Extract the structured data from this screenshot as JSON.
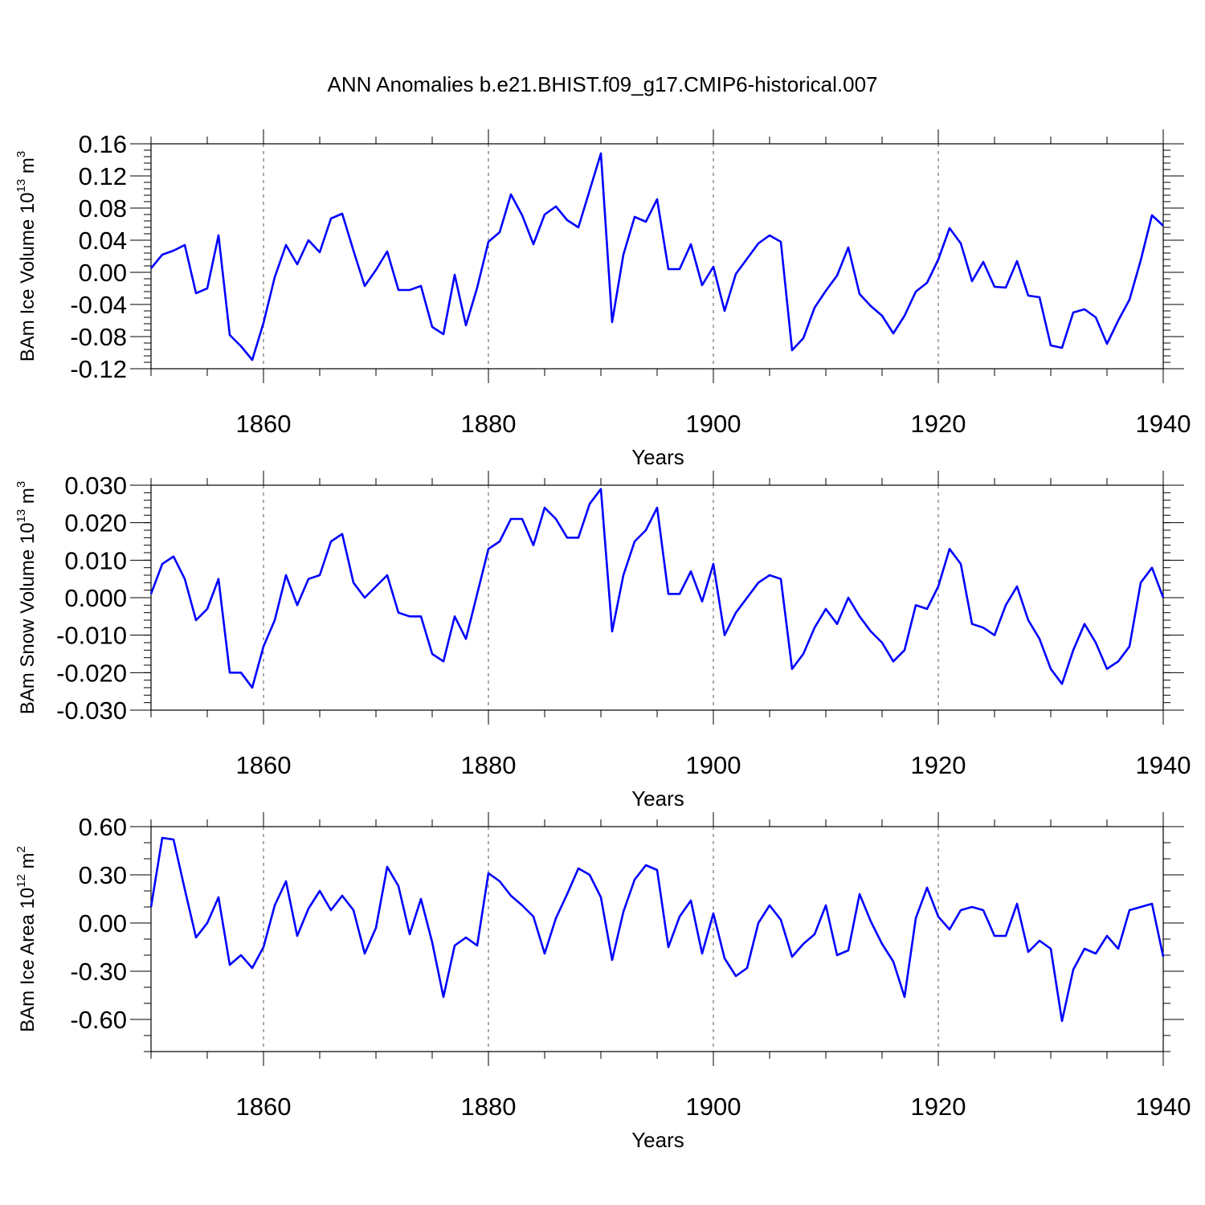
{
  "title": "ANN Anomalies b.e21.BHIST.f09_g17.CMIP6-historical.007",
  "chart_data": [
    {
      "type": "line",
      "ylabel": "BAm Ice Volume 10",
      "yunit_exp": "13",
      "yunit_tail": " m",
      "yunit_pow": "3",
      "xlabel": "Years",
      "xlim": [
        1850,
        1940
      ],
      "ylim": [
        -0.12,
        0.16
      ],
      "yticks": [
        -0.12,
        -0.08,
        -0.04,
        0.0,
        0.04,
        0.08,
        0.12,
        0.16
      ],
      "ytick_labels": [
        "-0.12",
        "-0.08",
        "-0.04",
        "0.00",
        "0.04",
        "0.08",
        "0.12",
        "0.16"
      ],
      "ytick_minor_step": 0.008,
      "xticks": [
        1860,
        1880,
        1900,
        1920,
        1940
      ],
      "xtick_labels": [
        "1860",
        "1880",
        "1900",
        "1920",
        "1940"
      ],
      "color": "#0000ff",
      "grid": "vertical dashed at major x ticks",
      "x": [
        1850,
        1851,
        1852,
        1853,
        1854,
        1855,
        1856,
        1857,
        1858,
        1859,
        1860,
        1861,
        1862,
        1863,
        1864,
        1865,
        1866,
        1867,
        1868,
        1869,
        1870,
        1871,
        1872,
        1873,
        1874,
        1875,
        1876,
        1877,
        1878,
        1879,
        1880,
        1881,
        1882,
        1883,
        1884,
        1885,
        1886,
        1887,
        1888,
        1889,
        1890,
        1891,
        1892,
        1893,
        1894,
        1895,
        1896,
        1897,
        1898,
        1899,
        1900,
        1901,
        1902,
        1903,
        1904,
        1905,
        1906,
        1907,
        1908,
        1909,
        1910,
        1911,
        1912,
        1913,
        1914,
        1915,
        1916,
        1917,
        1918,
        1919,
        1920,
        1921,
        1922,
        1923,
        1924,
        1925,
        1926,
        1927,
        1928,
        1929,
        1930,
        1931,
        1932,
        1933,
        1934,
        1935,
        1936,
        1937,
        1938,
        1939,
        1940
      ],
      "values": [
        0.005,
        0.022,
        0.027,
        0.034,
        -0.026,
        -0.02,
        0.046,
        -0.078,
        -0.092,
        -0.109,
        -0.063,
        -0.006,
        0.034,
        0.01,
        0.04,
        0.025,
        0.067,
        0.073,
        0.027,
        -0.017,
        0.003,
        0.026,
        -0.022,
        -0.022,
        -0.017,
        -0.068,
        -0.077,
        -0.003,
        -0.066,
        -0.019,
        0.038,
        0.05,
        0.097,
        0.071,
        0.035,
        0.072,
        0.082,
        0.065,
        0.056,
        0.102,
        0.148,
        -0.062,
        0.022,
        0.069,
        0.063,
        0.091,
        0.004,
        0.004,
        0.035,
        -0.016,
        0.007,
        -0.048,
        -0.002,
        0.017,
        0.036,
        0.046,
        0.038,
        -0.097,
        -0.082,
        -0.044,
        -0.023,
        -0.004,
        0.031,
        -0.027,
        -0.042,
        -0.054,
        -0.076,
        -0.054,
        -0.024,
        -0.013,
        0.016,
        0.055,
        0.036,
        -0.011,
        0.013,
        -0.018,
        -0.019,
        0.014,
        -0.029,
        -0.031,
        -0.091,
        -0.094,
        -0.05,
        -0.046,
        -0.056,
        -0.089,
        -0.06,
        -0.034,
        0.015,
        0.071,
        0.058
      ]
    },
    {
      "type": "line",
      "ylabel": "BAm Snow Volume 10",
      "yunit_exp": "13",
      "yunit_tail": " m",
      "yunit_pow": "3",
      "xlabel": "Years",
      "xlim": [
        1850,
        1940
      ],
      "ylim": [
        -0.03,
        0.03
      ],
      "yticks": [
        -0.03,
        -0.02,
        -0.01,
        0.0,
        0.01,
        0.02,
        0.03
      ],
      "ytick_labels": [
        "-0.030",
        "-0.020",
        "-0.010",
        "0.000",
        "0.010",
        "0.020",
        "0.030"
      ],
      "ytick_minor_step": 0.002,
      "xticks": [
        1860,
        1880,
        1900,
        1920,
        1940
      ],
      "xtick_labels": [
        "1860",
        "1880",
        "1900",
        "1920",
        "1940"
      ],
      "color": "#0000ff",
      "grid": "vertical dashed at major x ticks",
      "x": [
        1850,
        1851,
        1852,
        1853,
        1854,
        1855,
        1856,
        1857,
        1858,
        1859,
        1860,
        1861,
        1862,
        1863,
        1864,
        1865,
        1866,
        1867,
        1868,
        1869,
        1870,
        1871,
        1872,
        1873,
        1874,
        1875,
        1876,
        1877,
        1878,
        1879,
        1880,
        1881,
        1882,
        1883,
        1884,
        1885,
        1886,
        1887,
        1888,
        1889,
        1890,
        1891,
        1892,
        1893,
        1894,
        1895,
        1896,
        1897,
        1898,
        1899,
        1900,
        1901,
        1902,
        1903,
        1904,
        1905,
        1906,
        1907,
        1908,
        1909,
        1910,
        1911,
        1912,
        1913,
        1914,
        1915,
        1916,
        1917,
        1918,
        1919,
        1920,
        1921,
        1922,
        1923,
        1924,
        1925,
        1926,
        1927,
        1928,
        1929,
        1930,
        1931,
        1932,
        1933,
        1934,
        1935,
        1936,
        1937,
        1938,
        1939,
        1940
      ],
      "values": [
        0.001,
        0.009,
        0.011,
        0.005,
        -0.006,
        -0.003,
        0.005,
        -0.02,
        -0.02,
        -0.024,
        -0.013,
        -0.006,
        0.006,
        -0.002,
        0.005,
        0.006,
        0.015,
        0.017,
        0.004,
        0.0,
        0.003,
        0.006,
        -0.004,
        -0.005,
        -0.005,
        -0.015,
        -0.017,
        -0.005,
        -0.011,
        0.001,
        0.013,
        0.015,
        0.021,
        0.021,
        0.014,
        0.024,
        0.021,
        0.016,
        0.016,
        0.025,
        0.029,
        -0.009,
        0.006,
        0.015,
        0.018,
        0.024,
        0.001,
        0.001,
        0.007,
        -0.001,
        0.009,
        -0.01,
        -0.004,
        0.0,
        0.004,
        0.006,
        0.005,
        -0.019,
        -0.015,
        -0.008,
        -0.003,
        -0.007,
        0.0,
        -0.005,
        -0.009,
        -0.012,
        -0.017,
        -0.014,
        -0.002,
        -0.003,
        0.003,
        0.013,
        0.009,
        -0.007,
        -0.008,
        -0.01,
        -0.002,
        0.003,
        -0.006,
        -0.011,
        -0.019,
        -0.023,
        -0.014,
        -0.007,
        -0.012,
        -0.019,
        -0.017,
        -0.013,
        0.004,
        0.008,
        0.0
      ]
    },
    {
      "type": "line",
      "ylabel": "BAm Ice Area 10",
      "yunit_exp": "12",
      "yunit_tail": " m",
      "yunit_pow": "2",
      "xlabel": "Years",
      "xlim": [
        1850,
        1940
      ],
      "ylim": [
        -0.8,
        0.6
      ],
      "yticks": [
        -0.6,
        -0.3,
        0.0,
        0.3,
        0.6
      ],
      "ytick_labels": [
        "-0.60",
        "-0.30",
        "0.00",
        "0.30",
        "0.60"
      ],
      "ytick_minor_step": 0.1,
      "xticks": [
        1860,
        1880,
        1900,
        1920,
        1940
      ],
      "xtick_labels": [
        "1860",
        "1880",
        "1900",
        "1920",
        "1940"
      ],
      "color": "#0000ff",
      "grid": "vertical dashed at major x ticks",
      "x": [
        1850,
        1851,
        1852,
        1853,
        1854,
        1855,
        1856,
        1857,
        1858,
        1859,
        1860,
        1861,
        1862,
        1863,
        1864,
        1865,
        1866,
        1867,
        1868,
        1869,
        1870,
        1871,
        1872,
        1873,
        1874,
        1875,
        1876,
        1877,
        1878,
        1879,
        1880,
        1881,
        1882,
        1883,
        1884,
        1885,
        1886,
        1887,
        1888,
        1889,
        1890,
        1891,
        1892,
        1893,
        1894,
        1895,
        1896,
        1897,
        1898,
        1899,
        1900,
        1901,
        1902,
        1903,
        1904,
        1905,
        1906,
        1907,
        1908,
        1909,
        1910,
        1911,
        1912,
        1913,
        1914,
        1915,
        1916,
        1917,
        1918,
        1919,
        1920,
        1921,
        1922,
        1923,
        1924,
        1925,
        1926,
        1927,
        1928,
        1929,
        1930,
        1931,
        1932,
        1933,
        1934,
        1935,
        1936,
        1937,
        1938,
        1939,
        1940
      ],
      "values": [
        0.1,
        0.53,
        0.52,
        0.21,
        -0.09,
        0.0,
        0.16,
        -0.26,
        -0.2,
        -0.28,
        -0.15,
        0.11,
        0.26,
        -0.08,
        0.09,
        0.2,
        0.08,
        0.17,
        0.08,
        -0.19,
        -0.03,
        0.35,
        0.23,
        -0.07,
        0.15,
        -0.12,
        -0.46,
        -0.14,
        -0.09,
        -0.14,
        0.31,
        0.26,
        0.17,
        0.11,
        0.04,
        -0.19,
        0.03,
        0.18,
        0.34,
        0.3,
        0.16,
        -0.23,
        0.07,
        0.27,
        0.36,
        0.33,
        -0.15,
        0.04,
        0.14,
        -0.19,
        0.06,
        -0.22,
        -0.33,
        -0.28,
        0.0,
        0.11,
        0.02,
        -0.21,
        -0.13,
        -0.07,
        0.11,
        -0.2,
        -0.17,
        0.18,
        0.01,
        -0.13,
        -0.24,
        -0.46,
        0.03,
        0.22,
        0.04,
        -0.04,
        0.08,
        0.1,
        0.08,
        -0.08,
        -0.08,
        0.12,
        -0.18,
        -0.11,
        -0.16,
        -0.61,
        -0.29,
        -0.16,
        -0.19,
        -0.08,
        -0.16,
        0.08,
        0.1,
        0.12,
        -0.21
      ]
    }
  ]
}
